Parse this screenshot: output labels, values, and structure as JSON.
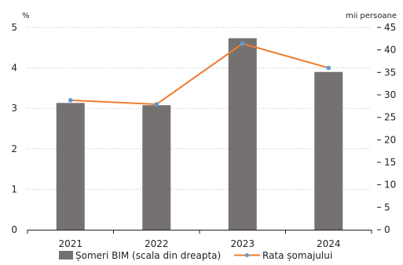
{
  "chart_data": {
    "type": "bar+line",
    "categories": [
      "2021",
      "2022",
      "2023",
      "2024"
    ],
    "series": [
      {
        "name": "Șomeri BIM (scala din dreapta)",
        "kind": "bar",
        "axis": "right",
        "values": [
          28.2,
          27.7,
          42.6,
          35.1
        ]
      },
      {
        "name": "Rata șomajului",
        "kind": "line",
        "axis": "left",
        "values": [
          3.2,
          3.1,
          4.6,
          4.0
        ]
      }
    ],
    "left_axis": {
      "unit_label": "%",
      "range": [
        0,
        5
      ],
      "ticks": [
        "0",
        "1",
        "2",
        "3",
        "4",
        "5"
      ]
    },
    "right_axis": {
      "unit_label": "mii persoane",
      "range": [
        0,
        45
      ],
      "ticks": [
        "0",
        "5",
        "10",
        "15",
        "20",
        "25",
        "30",
        "35",
        "40",
        "45"
      ]
    },
    "grid": "horizontal dotted",
    "legend_position": "bottom",
    "colors": {
      "bar": "#767171",
      "line": "#ED7D31",
      "marker": "#5B9BD5",
      "grid": "#bfbfbf",
      "axis": "#222222"
    }
  }
}
